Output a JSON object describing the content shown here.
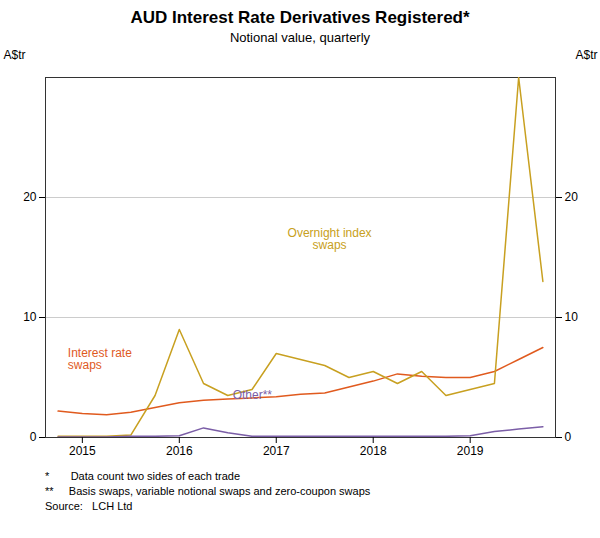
{
  "chart_data": {
    "type": "line",
    "title": "AUD Interest Rate Derivatives Registered*",
    "subtitle": "Notional value, quarterly",
    "ylabel": "A$tr",
    "y2label": "A$tr",
    "x": [
      2014.75,
      2015.0,
      2015.25,
      2015.5,
      2015.75,
      2016.0,
      2016.25,
      2016.5,
      2016.75,
      2017.0,
      2017.25,
      2017.5,
      2017.75,
      2018.0,
      2018.25,
      2018.5,
      2018.75,
      2019.0,
      2019.25,
      2019.5,
      2019.75
    ],
    "series": [
      {
        "name": "Interest rate\nswaps",
        "color": "#e05a1e",
        "values": [
          2.2,
          2.0,
          1.9,
          2.1,
          2.5,
          2.9,
          3.1,
          3.2,
          3.3,
          3.4,
          3.6,
          3.7,
          4.2,
          4.7,
          5.3,
          5.1,
          5.0,
          5.0,
          5.5,
          6.5,
          7.5
        ]
      },
      {
        "name": "Overnight index\nswaps",
        "color": "#c8a020",
        "values": [
          0.1,
          0.1,
          0.1,
          0.2,
          3.5,
          9.0,
          4.5,
          3.5,
          4.0,
          7.0,
          6.5,
          6.0,
          5.0,
          5.5,
          4.5,
          5.5,
          3.5,
          4.0,
          4.5,
          30.0,
          13.0
        ]
      },
      {
        "name": "Other**",
        "color": "#7b5ea7",
        "values": [
          0.05,
          0.05,
          0.05,
          0.1,
          0.1,
          0.15,
          0.8,
          0.4,
          0.1,
          0.1,
          0.1,
          0.1,
          0.1,
          0.1,
          0.1,
          0.1,
          0.1,
          0.15,
          0.5,
          0.7,
          0.9
        ]
      }
    ],
    "xlim": [
      2014.62,
      2019.88
    ],
    "xticks": [
      2015,
      2016,
      2017,
      2018,
      2019
    ],
    "ylim": [
      0,
      30
    ],
    "yticks": [
      0,
      10,
      20
    ],
    "y2lim": [
      0,
      30
    ],
    "y2ticks": [
      0,
      10,
      20
    ],
    "grid": true,
    "annotations": [
      {
        "text": "Overnight index\nswaps",
        "x": 2017.55,
        "y": 16.5,
        "color": "#c8a020",
        "align": "center"
      },
      {
        "text": "Interest rate\nswaps",
        "x": 2014.85,
        "y": 6.5,
        "color": "#e05a1e",
        "align": "left"
      },
      {
        "text": "Other**",
        "x": 2016.55,
        "y": 3.5,
        "color": "#7b5ea7",
        "align": "left"
      }
    ],
    "notes": [
      "*       Data count two sides of each trade",
      "**     Basis swaps, variable notional swaps and zero-coupon swaps",
      "Source:   LCH Ltd"
    ]
  }
}
